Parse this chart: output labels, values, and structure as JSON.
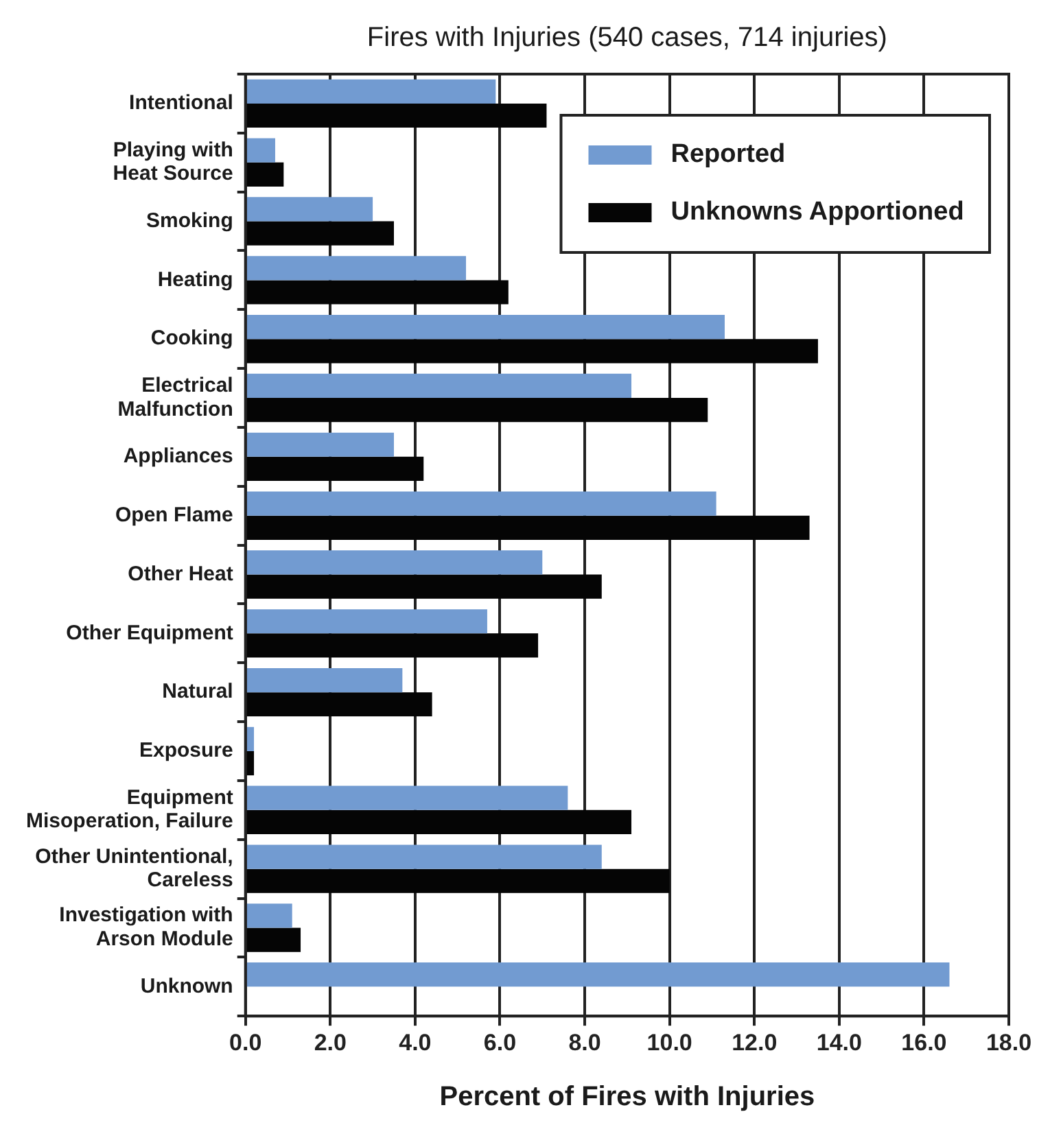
{
  "chart_data": {
    "type": "bar",
    "orientation": "horizontal",
    "title": "Fires with Injuries (540 cases, 714 injuries)",
    "xlabel": "Percent of Fires with Injuries",
    "categories": [
      "Intentional",
      "Playing with\nHeat Source",
      "Smoking",
      "Heating",
      "Cooking",
      "Electrical\nMalfunction",
      "Appliances",
      "Open Flame",
      "Other Heat",
      "Other Equipment",
      "Natural",
      "Exposure",
      "Equipment\nMisoperation, Failure",
      "Other Unintentional,\nCareless",
      "Investigation with\nArson Module",
      "Unknown"
    ],
    "series": [
      {
        "name": "Reported",
        "color": "#729bd1",
        "values": [
          5.9,
          0.7,
          3.0,
          5.2,
          11.3,
          9.1,
          3.5,
          11.1,
          7.0,
          5.7,
          3.7,
          0.2,
          7.6,
          8.4,
          1.1,
          16.6
        ]
      },
      {
        "name": "Unknowns Apportioned",
        "color": "#050505",
        "values": [
          7.1,
          0.9,
          3.5,
          6.2,
          13.5,
          10.9,
          4.2,
          13.3,
          8.4,
          6.9,
          4.4,
          0.2,
          9.1,
          10.0,
          1.3,
          null
        ]
      }
    ],
    "xlim": [
      0,
      18
    ],
    "xticks": [
      {
        "value": 0,
        "label": "0.0"
      },
      {
        "value": 2,
        "label": "2.0"
      },
      {
        "value": 4,
        "label": "4.0"
      },
      {
        "value": 6,
        "label": "6.0"
      },
      {
        "value": 8,
        "label": "8.0"
      },
      {
        "value": 10,
        "label": "10.0"
      },
      {
        "value": 12,
        "label": "12.0"
      },
      {
        "value": 14,
        "label": "14.0"
      },
      {
        "value": 16,
        "label": "16.0"
      },
      {
        "value": 18,
        "label": "18.0"
      }
    ],
    "grid": "x",
    "legend": "top right"
  }
}
